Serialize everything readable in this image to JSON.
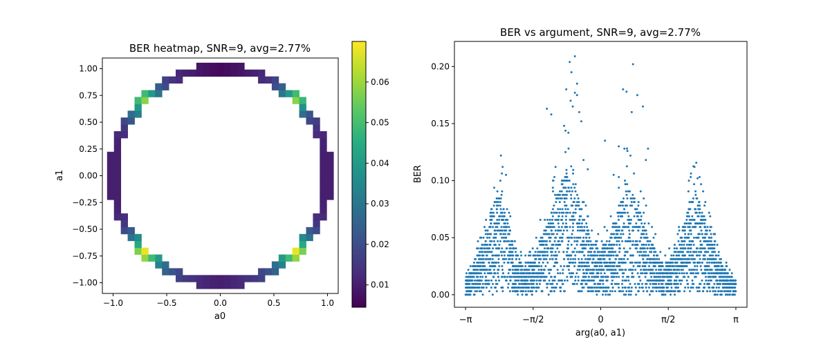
{
  "chart_data": [
    {
      "type": "heatmap",
      "title": "BER heatmap, SNR=9, avg=2.77%",
      "xlabel": "a0",
      "ylabel": "a1",
      "xlim": [
        -1.1,
        1.1
      ],
      "ylim": [
        -1.1,
        1.1
      ],
      "xticks": [
        -1.0,
        -0.5,
        0.0,
        0.5,
        1.0
      ],
      "xtick_labels": [
        "−1.0",
        "−0.5",
        "0.0",
        "0.5",
        "1.0"
      ],
      "yticks": [
        1.0,
        0.75,
        0.5,
        0.25,
        0.0,
        -0.25,
        -0.5,
        -0.75,
        -1.0
      ],
      "ytick_labels": [
        "1.00",
        "0.75",
        "0.50",
        "0.25",
        "0.00",
        "−0.25",
        "−0.50",
        "−0.75",
        "−1.00"
      ],
      "grid": false,
      "colormap": "viridis",
      "colorbar": {
        "range": [
          0.0045,
          0.07
        ],
        "ticks": [
          0.01,
          0.02,
          0.03,
          0.04,
          0.05,
          0.06
        ],
        "tick_labels": [
          "0.01",
          "0.02",
          "0.03",
          "0.04",
          "0.05",
          "0.06"
        ]
      },
      "ring": {
        "radius": 1.0,
        "cell_size": 0.064,
        "ber_by_angle_deg": [
          [
            0,
            0.01
          ],
          [
            10,
            0.01
          ],
          [
            20,
            0.011
          ],
          [
            28,
            0.015
          ],
          [
            35,
            0.022
          ],
          [
            40,
            0.038
          ],
          [
            45,
            0.058
          ],
          [
            50,
            0.04
          ],
          [
            55,
            0.025
          ],
          [
            62,
            0.015
          ],
          [
            70,
            0.011
          ],
          [
            80,
            0.008
          ],
          [
            90,
            0.006
          ],
          [
            100,
            0.008
          ],
          [
            110,
            0.011
          ],
          [
            118,
            0.015
          ],
          [
            125,
            0.024
          ],
          [
            130,
            0.04
          ],
          [
            135,
            0.058
          ],
          [
            140,
            0.04
          ],
          [
            145,
            0.028
          ],
          [
            152,
            0.016
          ],
          [
            160,
            0.011
          ],
          [
            170,
            0.01
          ],
          [
            180,
            0.01
          ],
          [
            190,
            0.01
          ],
          [
            200,
            0.011
          ],
          [
            208,
            0.016
          ],
          [
            215,
            0.03
          ],
          [
            220,
            0.045
          ],
          [
            225,
            0.068
          ],
          [
            230,
            0.05
          ],
          [
            235,
            0.034
          ],
          [
            242,
            0.022
          ],
          [
            250,
            0.016
          ],
          [
            260,
            0.012
          ],
          [
            270,
            0.01
          ],
          [
            280,
            0.012
          ],
          [
            290,
            0.016
          ],
          [
            298,
            0.022
          ],
          [
            305,
            0.034
          ],
          [
            310,
            0.05
          ],
          [
            315,
            0.068
          ],
          [
            320,
            0.045
          ],
          [
            325,
            0.03
          ],
          [
            332,
            0.016
          ],
          [
            340,
            0.011
          ],
          [
            350,
            0.01
          ],
          [
            360,
            0.01
          ]
        ]
      }
    },
    {
      "type": "scatter",
      "title": "BER vs argument, SNR=9, avg=2.77%",
      "xlabel": "arg(a0, a1)",
      "ylabel": "BER",
      "xlim": [
        -3.4,
        3.4
      ],
      "ylim": [
        -0.011,
        0.222
      ],
      "xticks": [
        -3.14159,
        -1.5708,
        0,
        1.5708,
        3.14159
      ],
      "xtick_labels": [
        "−π",
        "−π/2",
        "0",
        "π/2",
        "π"
      ],
      "yticks": [
        0.0,
        0.05,
        0.1,
        0.15,
        0.2
      ],
      "ytick_labels": [
        "0.00",
        "0.05",
        "0.10",
        "0.15",
        "0.20"
      ],
      "grid": false,
      "color": "#1f77b4",
      "series": [
        {
          "envelope": {
            "x": [
              -3.14,
              -2.8,
              -2.6,
              -2.4,
              -2.2,
              -2.0,
              -1.8,
              -1.6,
              -1.4,
              -1.2,
              -1.0,
              -0.8,
              -0.6,
              -0.4,
              -0.2,
              0.0,
              0.2,
              0.4,
              0.6,
              0.8,
              1.0,
              1.2,
              1.4,
              1.6,
              1.8,
              2.0,
              2.2,
              2.4,
              2.6,
              2.8,
              3.14
            ],
            "upper": [
              0.012,
              0.04,
              0.07,
              0.09,
              0.07,
              0.04,
              0.025,
              0.03,
              0.05,
              0.065,
              0.09,
              0.11,
              0.095,
              0.07,
              0.045,
              0.04,
              0.05,
              0.075,
              0.095,
              0.09,
              0.065,
              0.045,
              0.03,
              0.03,
              0.045,
              0.07,
              0.09,
              0.07,
              0.045,
              0.025,
              0.012
            ]
          },
          "highlights": [
            [
              -0.6,
              0.209
            ],
            [
              -0.72,
              0.204
            ],
            [
              -0.68,
              0.195
            ],
            [
              -0.55,
              0.185
            ],
            [
              -0.6,
              0.177
            ],
            [
              -0.55,
              0.175
            ],
            [
              -0.8,
              0.18
            ],
            [
              -0.7,
              0.17
            ],
            [
              -0.65,
              0.165
            ],
            [
              -0.5,
              0.16
            ],
            [
              -1.25,
              0.163
            ],
            [
              -1.15,
              0.158
            ],
            [
              -0.45,
              0.152
            ],
            [
              -0.85,
              0.148
            ],
            [
              -0.75,
              0.142
            ],
            [
              0.75,
              0.202
            ],
            [
              0.52,
              0.18
            ],
            [
              0.6,
              0.178
            ],
            [
              0.85,
              0.175
            ],
            [
              0.98,
              0.165
            ],
            [
              0.72,
              0.16
            ],
            [
              -2.32,
              0.122
            ],
            [
              -2.28,
              0.112
            ],
            [
              2.18,
              0.112
            ],
            [
              -2.2,
              0.105
            ],
            [
              0.1,
              0.135
            ],
            [
              0.42,
              0.13
            ],
            [
              0.55,
              0.128
            ],
            [
              0.62,
              0.126
            ],
            [
              1.1,
              0.128
            ],
            [
              1.05,
              0.118
            ],
            [
              -0.3,
              0.11
            ],
            [
              -0.4,
              0.118
            ],
            [
              0.3,
              0.105
            ],
            [
              -1.05,
              0.112
            ],
            [
              -1.1,
              0.1
            ],
            [
              2.05,
              0.1
            ],
            [
              2.25,
              0.102
            ]
          ]
        }
      ]
    }
  ]
}
